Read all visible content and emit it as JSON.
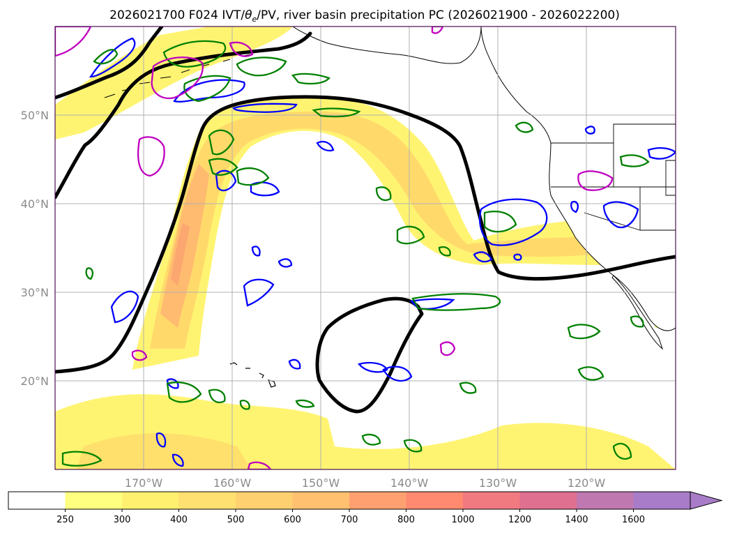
{
  "title": {
    "pre": "2026021700 F024 IVT/",
    "theta": "θ",
    "sub": "e",
    "post": "/PV, river basin precipitation PC (2026021900 - 2026022200)"
  },
  "map": {
    "lon_labels": [
      "170°W",
      "160°W",
      "150°W",
      "140°W",
      "130°W",
      "120°W"
    ],
    "lat_labels": [
      "50°N",
      "40°N",
      "30°N",
      "20°N"
    ],
    "colors": {
      "ocean": "#ffffff",
      "ivt_fill_low": "#fff36a",
      "ivt_fill_mid": "#ffd76a",
      "ivt_fill_high": "#ffb070",
      "ivt_fill_peak": "#f99a70",
      "theta_e_contour": "#000000",
      "pv_contour_blue": "#0000ff",
      "pv_contour_green": "#008000",
      "pv_contour_magenta": "#c000c0",
      "gridline": "#b0b0b0",
      "coastline": "#000000"
    }
  },
  "colorbar": {
    "ticks": [
      "250",
      "300",
      "400",
      "500",
      "600",
      "700",
      "800",
      "1000",
      "1200",
      "1400",
      "1600"
    ],
    "colors": [
      "#ffffff",
      "#ffff80",
      "#fff070",
      "#ffe070",
      "#ffd070",
      "#ffc070",
      "#ffa070",
      "#ff8a70",
      "#f07a80",
      "#e07090",
      "#c078b0",
      "#a87cc8"
    ],
    "extend": "max"
  }
}
